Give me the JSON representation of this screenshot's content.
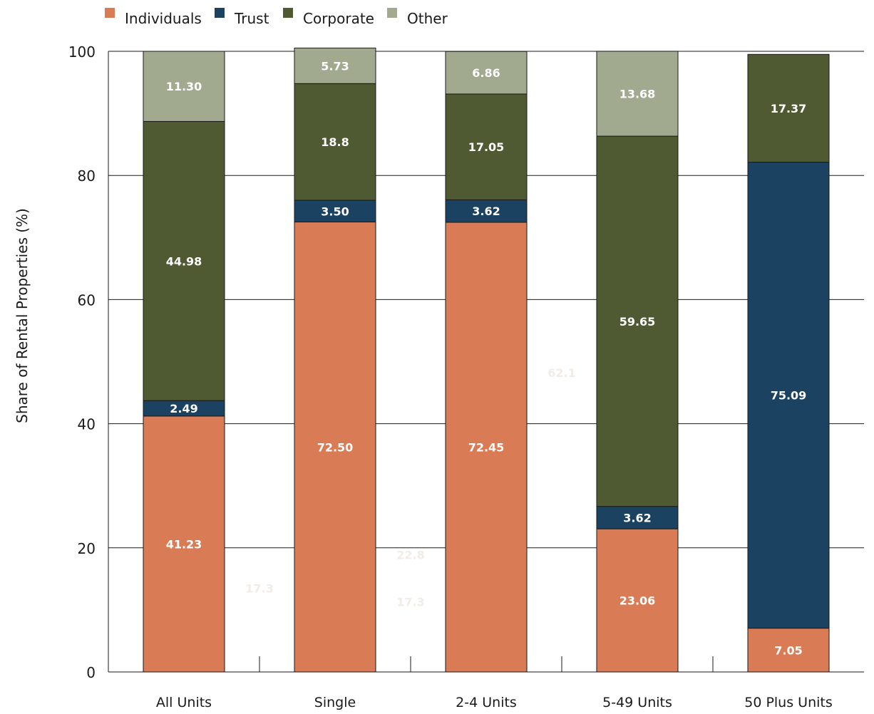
{
  "chart_data": {
    "type": "bar",
    "stacked": true,
    "title": "",
    "xlabel": "",
    "ylabel": "Share of Rental Properties (%)",
    "ylim": [
      0,
      100
    ],
    "yticks": [
      0,
      20,
      40,
      60,
      80,
      100
    ],
    "grid": true,
    "legend_position": "top-left",
    "categories": [
      "All Units",
      "Single",
      "2-4 Units",
      "5-49 Units",
      "50 Plus Units"
    ],
    "series": [
      {
        "name": "Individuals",
        "color": "#d97b55",
        "values": [
          41.23,
          72.5,
          72.45,
          23.06,
          7.05
        ],
        "labels": [
          "41.23",
          "72.50",
          "72.45",
          "23.06",
          "7.05"
        ]
      },
      {
        "name": "Trust",
        "color": "#1b4260",
        "values": [
          2.49,
          3.5,
          3.62,
          3.62,
          75.09
        ],
        "labels": [
          "2.49",
          "3.50",
          "3.62",
          "3.62",
          "75.09"
        ]
      },
      {
        "name": "Corporate",
        "color": "#4f5a32",
        "values": [
          44.98,
          18.8,
          17.05,
          59.65,
          17.37
        ],
        "labels": [
          "44.98",
          "18.8",
          "17.05",
          "59.65",
          "17.37"
        ]
      },
      {
        "name": "Other",
        "color": "#a1a98f",
        "values": [
          11.3,
          5.73,
          6.86,
          13.68,
          0
        ],
        "labels": [
          "11.30",
          "5.73",
          "6.86",
          "13.68",
          ""
        ]
      }
    ],
    "faint_annotations": [
      {
        "text": "17.3",
        "x_between": [
          0,
          1
        ],
        "y": 13.5
      },
      {
        "text": "17.3",
        "x_between": [
          1,
          2
        ],
        "y": 11.3
      },
      {
        "text": "22.8",
        "x_between": [
          1,
          2
        ],
        "y": 18.9
      },
      {
        "text": "62.1",
        "x_between": [
          2,
          3
        ],
        "y": 48.2
      }
    ]
  }
}
